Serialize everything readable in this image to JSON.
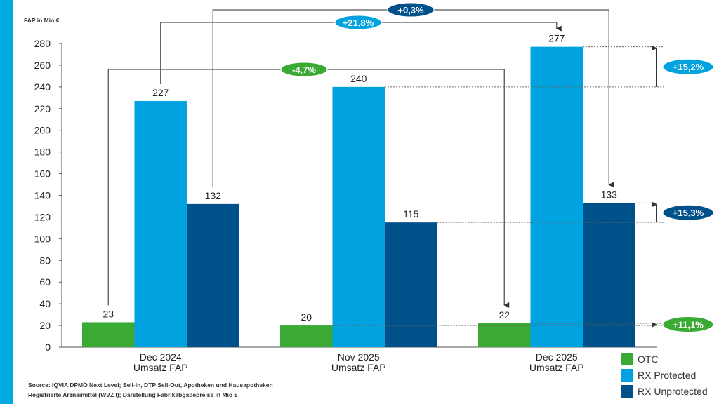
{
  "chart_data": {
    "type": "bar",
    "ylabel": "FAP in Mio €",
    "ylim": [
      0,
      280
    ],
    "yticks": [
      0,
      20,
      40,
      60,
      80,
      100,
      120,
      140,
      160,
      180,
      200,
      220,
      240,
      260,
      280
    ],
    "categories": [
      [
        "Dec 2024",
        "Umsatz FAP"
      ],
      [
        "Nov 2025",
        "Umsatz FAP"
      ],
      [
        "Dec 2025",
        "Umsatz FAP"
      ]
    ],
    "series": [
      {
        "name": "OTC",
        "color": "#3aaa35",
        "values": [
          23,
          20,
          22
        ]
      },
      {
        "name": "RX Protected",
        "color": "#00a3e0",
        "values": [
          227,
          240,
          277
        ]
      },
      {
        "name": "RX Unprotected",
        "color": "#00508a",
        "values": [
          132,
          115,
          133
        ]
      }
    ],
    "annotations": {
      "period_changes": [
        {
          "label": "-4,7%",
          "series": 0,
          "from": 0,
          "to": 2,
          "color": "#3aaa35"
        },
        {
          "label": "+21,8%",
          "series": 1,
          "from": 0,
          "to": 2,
          "color": "#00a3e0"
        },
        {
          "label": "+0,3%",
          "series": 2,
          "from": 0,
          "to": 2,
          "color": "#00508a"
        }
      ],
      "month_changes": [
        {
          "label": "+15,2%",
          "series": 1,
          "color": "#00a3e0"
        },
        {
          "label": "+15,3%",
          "series": 2,
          "color": "#00508a"
        },
        {
          "label": "+11,1%",
          "series": 0,
          "color": "#3aaa35"
        }
      ]
    }
  },
  "source": [
    "Source: IQVIA DPMÖ Next Level; Sell-In, DTP Sell-Out, Apotheken und Hausapotheken",
    "Registrierte Arzneimittel (WVZ I); Darstellung Fabrikabgabepreise in Mio €"
  ]
}
